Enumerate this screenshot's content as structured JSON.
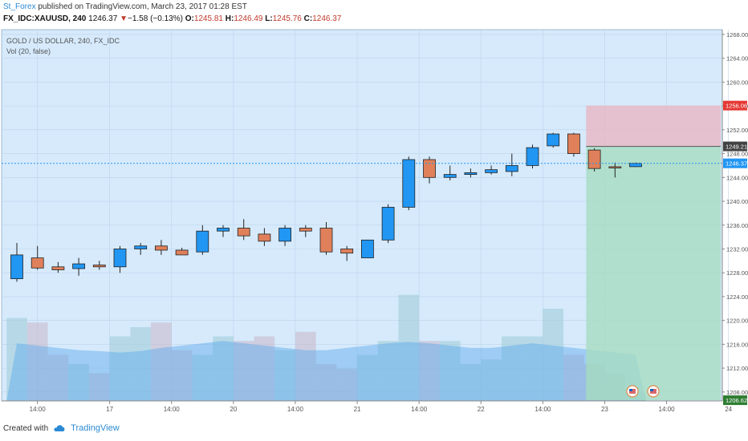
{
  "header": {
    "user": "St_Forex",
    "published_text": " published on TradingView.com, March 23, 2017 01:28 EST",
    "symbol": "FX_IDC:XAUUSD, 240",
    "last": "1246.37",
    "change_arrow": "▼",
    "change": "−1.58 (−0.13%)",
    "o_label": "O:",
    "o": "1245.81",
    "h_label": "H:",
    "h": "1246.49",
    "l_label": "L:",
    "l": "1245.76",
    "c_label": "C:",
    "c": "1246.37"
  },
  "legend": {
    "title": "GOLD / US DOLLAR, 240, FX_IDC",
    "vol": "Vol (20, false)"
  },
  "footer": {
    "created_with": "Created with",
    "brand": "TradingView"
  },
  "colors": {
    "background": "#d6eafc",
    "up": "#2196f3",
    "down": "#e0805a",
    "wick": "#222222",
    "grid": "#bcd3ea",
    "stop_zone": "#e7b9c6",
    "target_zone": "#a6dcc1",
    "last_price": "#2196f3",
    "stop_label": "#e53935",
    "target_label": "#2e7d32",
    "entry_label": "#424242"
  },
  "chart_data": {
    "type": "candlestick",
    "title": "GOLD / US DOLLAR, 240, FX_IDC",
    "y_ticks": [
      1208.0,
      1212.0,
      1216.0,
      1220.0,
      1224.0,
      1228.0,
      1232.0,
      1236.0,
      1240.0,
      1244.0,
      1248.0,
      1252.0,
      1256.0,
      1260.0,
      1264.0,
      1268.0
    ],
    "ylim": [
      1206.5,
      1268.8
    ],
    "x_tick_labels": [
      {
        "index": 1,
        "label": "14:00"
      },
      {
        "index": 4.5,
        "label": "17"
      },
      {
        "index": 7.5,
        "label": "14:00"
      },
      {
        "index": 10.5,
        "label": "20"
      },
      {
        "index": 13.5,
        "label": "14:00"
      },
      {
        "index": 16.5,
        "label": "21"
      },
      {
        "index": 19.5,
        "label": "14:00"
      },
      {
        "index": 22.5,
        "label": "22"
      },
      {
        "index": 25.5,
        "label": "14:00"
      },
      {
        "index": 28.5,
        "label": "23"
      },
      {
        "index": 31.5,
        "label": "14:00"
      },
      {
        "index": 34.5,
        "label": "24"
      }
    ],
    "candles": [
      {
        "o": 1227.0,
        "h": 1233.0,
        "l": 1226.5,
        "c": 1231.0
      },
      {
        "o": 1230.5,
        "h": 1232.5,
        "l": 1228.5,
        "c": 1228.8
      },
      {
        "o": 1229.0,
        "h": 1229.8,
        "l": 1228.0,
        "c": 1228.5
      },
      {
        "o": 1228.7,
        "h": 1230.5,
        "l": 1227.5,
        "c": 1229.5
      },
      {
        "o": 1229.3,
        "h": 1230.0,
        "l": 1228.5,
        "c": 1229.0
      },
      {
        "o": 1229.0,
        "h": 1232.5,
        "l": 1228.0,
        "c": 1232.0
      },
      {
        "o": 1232.0,
        "h": 1233.0,
        "l": 1231.0,
        "c": 1232.5
      },
      {
        "o": 1232.5,
        "h": 1233.5,
        "l": 1231.0,
        "c": 1231.8
      },
      {
        "o": 1231.8,
        "h": 1232.2,
        "l": 1231.0,
        "c": 1231.0
      },
      {
        "o": 1231.5,
        "h": 1236.0,
        "l": 1231.0,
        "c": 1235.0
      },
      {
        "o": 1235.0,
        "h": 1236.0,
        "l": 1234.0,
        "c": 1235.5
      },
      {
        "o": 1235.5,
        "h": 1237.0,
        "l": 1233.5,
        "c": 1234.2
      },
      {
        "o": 1234.5,
        "h": 1235.5,
        "l": 1232.5,
        "c": 1233.3
      },
      {
        "o": 1233.3,
        "h": 1236.0,
        "l": 1232.5,
        "c": 1235.5
      },
      {
        "o": 1235.5,
        "h": 1236.0,
        "l": 1234.0,
        "c": 1235.0
      },
      {
        "o": 1235.5,
        "h": 1236.5,
        "l": 1231.0,
        "c": 1231.5
      },
      {
        "o": 1232.0,
        "h": 1232.5,
        "l": 1230.0,
        "c": 1231.3
      },
      {
        "o": 1230.5,
        "h": 1233.5,
        "l": 1230.5,
        "c": 1233.5
      },
      {
        "o": 1233.5,
        "h": 1239.5,
        "l": 1233.0,
        "c": 1239.0
      },
      {
        "o": 1239.0,
        "h": 1247.5,
        "l": 1238.5,
        "c": 1247.0
      },
      {
        "o": 1247.0,
        "h": 1247.5,
        "l": 1243.0,
        "c": 1244.0
      },
      {
        "o": 1244.0,
        "h": 1246.0,
        "l": 1243.5,
        "c": 1244.5
      },
      {
        "o": 1244.5,
        "h": 1245.5,
        "l": 1244.0,
        "c": 1244.8
      },
      {
        "o": 1244.8,
        "h": 1246.0,
        "l": 1244.5,
        "c": 1245.3
      },
      {
        "o": 1245.0,
        "h": 1248.0,
        "l": 1244.2,
        "c": 1246.0
      },
      {
        "o": 1246.0,
        "h": 1249.5,
        "l": 1245.5,
        "c": 1249.0
      },
      {
        "o": 1249.3,
        "h": 1251.5,
        "l": 1249.0,
        "c": 1251.3
      },
      {
        "o": 1251.3,
        "h": 1251.5,
        "l": 1247.5,
        "c": 1248.0
      },
      {
        "o": 1248.6,
        "h": 1248.9,
        "l": 1245.0,
        "c": 1245.5
      },
      {
        "o": 1245.8,
        "h": 1246.5,
        "l": 1244.0,
        "c": 1245.6
      },
      {
        "o": 1245.81,
        "h": 1246.49,
        "l": 1245.76,
        "c": 1246.37
      }
    ],
    "volume": [
      18,
      17,
      10,
      8,
      6,
      14,
      16,
      17,
      11,
      10,
      14,
      13,
      14,
      11,
      15,
      8,
      7,
      10,
      13,
      23,
      13,
      13,
      8,
      9,
      14,
      14,
      20,
      10,
      8,
      6,
      2
    ],
    "volume_ma_band": [
      12.5,
      12,
      11.5,
      11,
      10.8,
      10.5,
      10.8,
      11.5,
      12,
      12.5,
      13,
      12.5,
      12,
      11.5,
      11,
      11,
      11.5,
      12,
      12.5,
      12.8,
      12.5,
      12,
      11.5,
      11.5,
      12,
      12.5,
      12,
      11.5,
      11,
      10.5,
      10
    ],
    "position": {
      "side": "short",
      "entry": 1249.21,
      "stop": 1256.06,
      "target": 1206.62,
      "start_index": 27.6
    },
    "last_price": 1246.37,
    "price_labels": [
      "1256.06",
      "1249.21",
      "1246.37",
      "1206.62"
    ],
    "grid": true,
    "legend_position": "top-left"
  }
}
